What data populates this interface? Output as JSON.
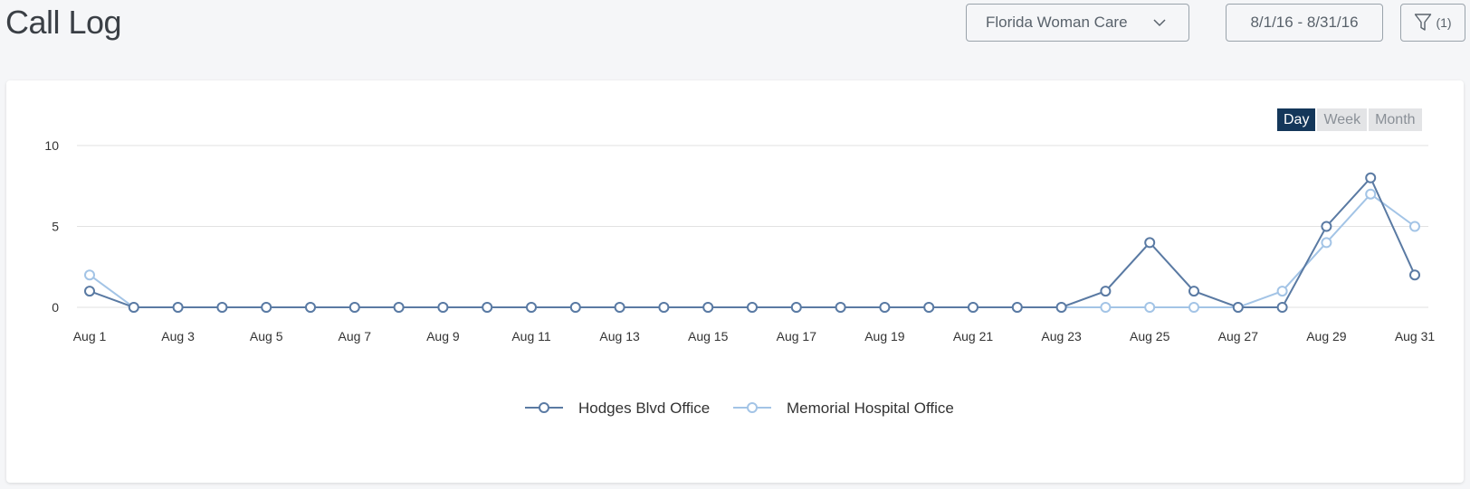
{
  "header": {
    "title": "Call Log",
    "practice": "Florida Woman Care",
    "date_range": "8/1/16 - 8/31/16",
    "filter_count": "(1)"
  },
  "granularity": {
    "options": [
      "Day",
      "Week",
      "Month"
    ],
    "selected": "Day"
  },
  "colors": {
    "series1": "#5a7aa3",
    "series2": "#a3c4e6",
    "active_toggle": "#14375a"
  },
  "chart_data": {
    "type": "line",
    "x": [
      "Aug 1",
      "Aug 2",
      "Aug 3",
      "Aug 4",
      "Aug 5",
      "Aug 6",
      "Aug 7",
      "Aug 8",
      "Aug 9",
      "Aug 10",
      "Aug 11",
      "Aug 12",
      "Aug 13",
      "Aug 14",
      "Aug 15",
      "Aug 16",
      "Aug 17",
      "Aug 18",
      "Aug 19",
      "Aug 20",
      "Aug 21",
      "Aug 22",
      "Aug 23",
      "Aug 24",
      "Aug 25",
      "Aug 26",
      "Aug 27",
      "Aug 28",
      "Aug 29",
      "Aug 30",
      "Aug 31"
    ],
    "x_tick_labels": [
      "Aug 1",
      "Aug 3",
      "Aug 5",
      "Aug 7",
      "Aug 9",
      "Aug 11",
      "Aug 13",
      "Aug 15",
      "Aug 17",
      "Aug 19",
      "Aug 21",
      "Aug 23",
      "Aug 25",
      "Aug 27",
      "Aug 29",
      "Aug 31"
    ],
    "y_ticks": [
      0,
      5,
      10
    ],
    "ylim": [
      0,
      10
    ],
    "grid": true,
    "legend_position": "bottom",
    "series": [
      {
        "name": "Hodges Blvd Office",
        "values": [
          1,
          0,
          0,
          0,
          0,
          0,
          0,
          0,
          0,
          0,
          0,
          0,
          0,
          0,
          0,
          0,
          0,
          0,
          0,
          0,
          0,
          0,
          0,
          1,
          4,
          1,
          0,
          0,
          5,
          8,
          2
        ]
      },
      {
        "name": "Memorial Hospital Office",
        "values": [
          2,
          0,
          0,
          0,
          0,
          0,
          0,
          0,
          0,
          0,
          0,
          0,
          0,
          0,
          0,
          0,
          0,
          0,
          0,
          0,
          0,
          0,
          0,
          0,
          0,
          0,
          0,
          1,
          4,
          7,
          5
        ]
      }
    ]
  }
}
